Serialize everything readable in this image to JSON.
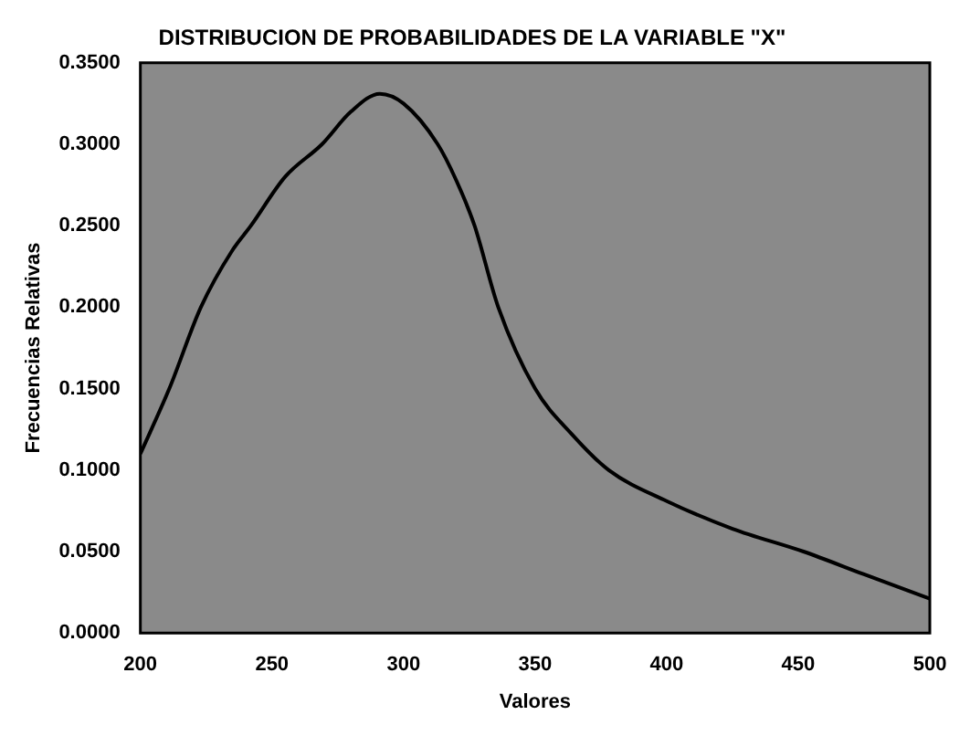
{
  "chart_data": {
    "type": "line",
    "title": "DISTRIBUCION DE PROBABILIDADES DE LA VARIABLE \"X\"",
    "xlabel": "Valores",
    "ylabel": "Frecuencias Relativas",
    "x": [
      200,
      211,
      223,
      235,
      242,
      255,
      269,
      280,
      291,
      300,
      313,
      320,
      327,
      336,
      350,
      364,
      378,
      400,
      425,
      452,
      475,
      500
    ],
    "values": [
      0.11,
      0.15,
      0.2,
      0.235,
      0.25,
      0.28,
      0.3,
      0.32,
      0.331,
      0.325,
      0.3,
      0.278,
      0.25,
      0.2,
      0.15,
      0.122,
      0.1,
      0.081,
      0.064,
      0.05,
      0.036,
      0.021
    ],
    "color": "#000000",
    "xlim": [
      200,
      500
    ],
    "xticks": [
      200,
      250,
      300,
      350,
      400,
      450,
      500
    ],
    "ylim": [
      0,
      0.35
    ],
    "yticks": [
      {
        "value": 0,
        "label": "0.0000"
      },
      {
        "value": 0.05,
        "label": "0.0500"
      },
      {
        "value": 0.1,
        "label": "0.1000"
      },
      {
        "value": 0.15,
        "label": "0.1500"
      },
      {
        "value": 0.2,
        "label": "0.2000"
      },
      {
        "value": 0.25,
        "label": "0.2500"
      },
      {
        "value": 0.3,
        "label": "0.3000"
      },
      {
        "value": 0.35,
        "label": "0.3500"
      }
    ],
    "grid": false,
    "legend": false,
    "marker": "none",
    "line_style": "solid"
  }
}
